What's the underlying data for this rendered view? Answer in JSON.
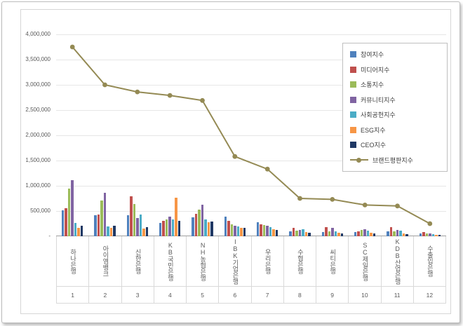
{
  "chart_data": {
    "type": "bar",
    "subtype": "grouped-bars-with-line-overlay",
    "title": "",
    "categories": [
      "하나은행",
      "아이엠뱅크",
      "신한은행",
      "KB국민은행",
      "NH농협은행",
      "IBK기업은행",
      "우리은행",
      "수협은행",
      "씨티은행",
      "SC제일은행",
      "KDB산업은행",
      "수출입은행"
    ],
    "category_numbers": [
      "1",
      "2",
      "3",
      "4",
      "5",
      "6",
      "7",
      "8",
      "9",
      "10",
      "11",
      "12"
    ],
    "series": [
      {
        "name": "참여지수",
        "color": "#4F81BD",
        "values": [
          510000,
          420000,
          410000,
          270000,
          370000,
          390000,
          280000,
          100000,
          90000,
          90000,
          95000,
          60000
        ]
      },
      {
        "name": "미디어지수",
        "color": "#C0504D",
        "values": [
          560000,
          430000,
          790000,
          300000,
          440000,
          310000,
          230000,
          170000,
          180000,
          100000,
          185000,
          80000
        ]
      },
      {
        "name": "소통지수",
        "color": "#9BBB59",
        "values": [
          950000,
          710000,
          640000,
          340000,
          530000,
          230000,
          220000,
          105000,
          100000,
          120000,
          95000,
          60000
        ]
      },
      {
        "name": "커뮤니티지수",
        "color": "#8064A2",
        "values": [
          1110000,
          860000,
          360000,
          390000,
          620000,
          210000,
          205000,
          125000,
          160000,
          140000,
          125000,
          50000
        ]
      },
      {
        "name": "사회공헌지수",
        "color": "#4BACC6",
        "values": [
          260000,
          190000,
          430000,
          340000,
          340000,
          190000,
          175000,
          140000,
          100000,
          105000,
          115000,
          40000
        ]
      },
      {
        "name": "ESG지수",
        "color": "#F79646",
        "values": [
          160000,
          160000,
          155000,
          760000,
          275000,
          160000,
          145000,
          85000,
          65000,
          75000,
          55000,
          30000
        ]
      },
      {
        "name": "CEO지수",
        "color": "#1F3864",
        "values": [
          210000,
          210000,
          175000,
          310000,
          290000,
          160000,
          125000,
          65000,
          60000,
          55000,
          45000,
          30000
        ]
      }
    ],
    "line_series": {
      "name": "브랜드평판지수",
      "color": "#948A54",
      "values": [
        3750000,
        3000000,
        2860000,
        2790000,
        2690000,
        1580000,
        1330000,
        750000,
        730000,
        620000,
        600000,
        250000
      ]
    },
    "y_axis": {
      "min": 0,
      "max": 4000000,
      "tick_step": 500000,
      "tick_labels": [
        "4,000,000",
        "3,500,000",
        "3,000,000",
        "2,500,000",
        "2,000,000",
        "1,500,000",
        "1,000,000",
        "500,000",
        "-"
      ]
    },
    "grid": true,
    "legend_position": "right-top"
  }
}
